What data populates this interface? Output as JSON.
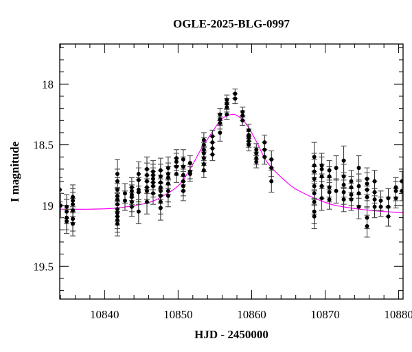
{
  "chart_data": {
    "type": "scatter",
    "title": "OGLE-2025-BLG-0997",
    "xlabel": "HJD - 2450000",
    "ylabel": "I magnitude",
    "xlim": [
      10833.9,
      10880.6
    ],
    "ylim": [
      19.77,
      17.67
    ],
    "y_inverted": true,
    "x_ticks": [
      10840,
      10850,
      10860,
      10870,
      10880
    ],
    "x_tick_labels": [
      "10840",
      "10850",
      "10860",
      "10870",
      "10880"
    ],
    "y_ticks": [
      18,
      18.5,
      19,
      19.5
    ],
    "y_tick_labels": [
      "18",
      "18.5",
      "19",
      "19.5"
    ],
    "grid": false,
    "colors": {
      "points": "#000000",
      "errorbars": "#555555",
      "model": "#ff00ff",
      "axes": "#000000"
    },
    "series": [
      {
        "kind": "data_with_errorbars",
        "points": [
          [
            10833.9,
            18.87,
            0.1
          ],
          [
            10834.0,
            19.0,
            0.1
          ],
          [
            10834.84,
            19.01,
            0.1
          ],
          [
            10834.84,
            19.05,
            0.1
          ],
          [
            10834.84,
            19.1,
            0.1
          ],
          [
            10834.84,
            19.13,
            0.1
          ],
          [
            10835.68,
            18.93,
            0.1
          ],
          [
            10835.68,
            18.96,
            0.1
          ],
          [
            10835.68,
            18.99,
            0.1
          ],
          [
            10835.68,
            19.04,
            0.1
          ],
          [
            10835.68,
            19.11,
            0.1
          ],
          [
            10835.68,
            19.15,
            0.1
          ],
          [
            10841.74,
            18.74,
            0.12
          ],
          [
            10841.74,
            18.8,
            0.1
          ],
          [
            10841.74,
            18.87,
            0.1
          ],
          [
            10841.74,
            18.92,
            0.1
          ],
          [
            10841.74,
            18.95,
            0.1
          ],
          [
            10841.74,
            18.99,
            0.1
          ],
          [
            10841.74,
            19.03,
            0.1
          ],
          [
            10841.74,
            19.06,
            0.1
          ],
          [
            10841.74,
            19.09,
            0.1
          ],
          [
            10841.74,
            19.12,
            0.1
          ],
          [
            10841.74,
            19.15,
            0.1
          ],
          [
            10842.77,
            18.9,
            0.08
          ],
          [
            10842.77,
            18.96,
            0.08
          ],
          [
            10843.7,
            18.85,
            0.08
          ],
          [
            10843.7,
            18.88,
            0.08
          ],
          [
            10843.7,
            18.91,
            0.08
          ],
          [
            10843.7,
            18.93,
            0.08
          ],
          [
            10843.7,
            18.97,
            0.08
          ],
          [
            10843.7,
            19.01,
            0.08
          ],
          [
            10844.63,
            18.74,
            0.1
          ],
          [
            10844.63,
            18.79,
            0.1
          ],
          [
            10844.63,
            18.87,
            0.1
          ],
          [
            10844.63,
            18.89,
            0.1
          ],
          [
            10844.63,
            19.05,
            0.1
          ],
          [
            10845.76,
            18.7,
            0.1
          ],
          [
            10845.76,
            18.75,
            0.1
          ],
          [
            10845.76,
            18.8,
            0.1
          ],
          [
            10845.76,
            18.85,
            0.1
          ],
          [
            10845.76,
            18.88,
            0.1
          ],
          [
            10845.76,
            18.97,
            0.1
          ],
          [
            10846.6,
            18.72,
            0.09
          ],
          [
            10846.6,
            18.75,
            0.09
          ],
          [
            10846.6,
            18.78,
            0.09
          ],
          [
            10846.6,
            18.81,
            0.09
          ],
          [
            10846.6,
            18.84,
            0.09
          ],
          [
            10846.6,
            18.9,
            0.09
          ],
          [
            10847.62,
            18.71,
            0.1
          ],
          [
            10847.62,
            18.76,
            0.1
          ],
          [
            10847.62,
            18.81,
            0.1
          ],
          [
            10847.62,
            18.85,
            0.1
          ],
          [
            10847.62,
            18.88,
            0.1
          ],
          [
            10847.62,
            18.92,
            0.1
          ],
          [
            10847.62,
            18.97,
            0.1
          ],
          [
            10847.62,
            19.02,
            0.1
          ],
          [
            10848.65,
            18.69,
            0.09
          ],
          [
            10848.65,
            18.74,
            0.09
          ],
          [
            10848.65,
            18.77,
            0.09
          ],
          [
            10848.65,
            18.82,
            0.09
          ],
          [
            10848.65,
            18.88,
            0.09
          ],
          [
            10848.65,
            18.92,
            0.09
          ],
          [
            10849.77,
            18.61,
            0.07
          ],
          [
            10849.77,
            18.64,
            0.07
          ],
          [
            10849.77,
            18.68,
            0.07
          ],
          [
            10849.77,
            18.74,
            0.07
          ],
          [
            10850.7,
            18.62,
            0.08
          ],
          [
            10850.7,
            18.68,
            0.08
          ],
          [
            10850.7,
            18.75,
            0.08
          ],
          [
            10850.7,
            18.8,
            0.08
          ],
          [
            10850.7,
            18.84,
            0.08
          ],
          [
            10850.7,
            18.88,
            0.08
          ],
          [
            10851.63,
            18.65,
            0.06
          ],
          [
            10851.63,
            18.72,
            0.06
          ],
          [
            10851.63,
            18.74,
            0.06
          ],
          [
            10853.5,
            18.46,
            0.06
          ],
          [
            10853.5,
            18.5,
            0.06
          ],
          [
            10853.5,
            18.54,
            0.06
          ],
          [
            10853.5,
            18.57,
            0.06
          ],
          [
            10853.5,
            18.61,
            0.06
          ],
          [
            10853.5,
            18.66,
            0.06
          ],
          [
            10853.5,
            18.71,
            0.06
          ],
          [
            10854.67,
            18.43,
            0.05
          ],
          [
            10854.67,
            18.48,
            0.05
          ],
          [
            10854.67,
            18.53,
            0.05
          ],
          [
            10854.67,
            18.58,
            0.05
          ],
          [
            10855.7,
            18.25,
            0.05
          ],
          [
            10855.7,
            18.29,
            0.05
          ],
          [
            10855.7,
            18.32,
            0.05
          ],
          [
            10855.7,
            18.4,
            0.07
          ],
          [
            10856.63,
            18.13,
            0.04
          ],
          [
            10856.63,
            18.16,
            0.04
          ],
          [
            10856.63,
            18.19,
            0.04
          ],
          [
            10856.63,
            18.25,
            0.04
          ],
          [
            10857.75,
            18.08,
            0.04
          ],
          [
            10857.75,
            18.12,
            0.04
          ],
          [
            10858.77,
            18.23,
            0.04
          ],
          [
            10858.77,
            18.26,
            0.04
          ],
          [
            10858.77,
            18.3,
            0.04
          ],
          [
            10859.61,
            18.38,
            0.05
          ],
          [
            10859.61,
            18.42,
            0.05
          ],
          [
            10859.61,
            18.44,
            0.05
          ],
          [
            10859.61,
            18.47,
            0.05
          ],
          [
            10859.61,
            18.5,
            0.05
          ],
          [
            10860.64,
            18.54,
            0.05
          ],
          [
            10860.64,
            18.57,
            0.05
          ],
          [
            10860.64,
            18.61,
            0.05
          ],
          [
            10860.64,
            18.64,
            0.05
          ],
          [
            10861.76,
            18.48,
            0.06
          ],
          [
            10861.76,
            18.54,
            0.06
          ],
          [
            10861.76,
            18.6,
            0.06
          ],
          [
            10862.69,
            18.62,
            0.07
          ],
          [
            10862.69,
            18.69,
            0.07
          ],
          [
            10862.69,
            18.8,
            0.09
          ],
          [
            10868.52,
            18.6,
            0.12
          ],
          [
            10868.52,
            18.67,
            0.1
          ],
          [
            10868.52,
            18.72,
            0.1
          ],
          [
            10868.52,
            18.78,
            0.1
          ],
          [
            10868.52,
            18.84,
            0.1
          ],
          [
            10868.52,
            18.9,
            0.1
          ],
          [
            10868.52,
            18.97,
            0.1
          ],
          [
            10868.52,
            19.05,
            0.1
          ],
          [
            10868.52,
            19.09,
            0.1
          ],
          [
            10869.54,
            18.67,
            0.1
          ],
          [
            10869.54,
            18.7,
            0.1
          ],
          [
            10869.54,
            18.76,
            0.1
          ],
          [
            10869.54,
            18.84,
            0.1
          ],
          [
            10869.54,
            18.94,
            0.1
          ],
          [
            10870.57,
            18.71,
            0.08
          ],
          [
            10870.57,
            18.76,
            0.08
          ],
          [
            10870.57,
            18.85,
            0.08
          ],
          [
            10870.57,
            18.89,
            0.08
          ],
          [
            10870.57,
            18.95,
            0.08
          ],
          [
            10871.5,
            18.69,
            0.1
          ],
          [
            10871.5,
            18.88,
            0.1
          ],
          [
            10872.53,
            18.63,
            0.12
          ],
          [
            10872.53,
            18.76,
            0.1
          ],
          [
            10872.53,
            18.83,
            0.1
          ],
          [
            10872.53,
            18.89,
            0.1
          ],
          [
            10872.53,
            18.95,
            0.1
          ],
          [
            10873.55,
            18.8,
            0.09
          ],
          [
            10873.55,
            18.85,
            0.09
          ],
          [
            10873.55,
            18.91,
            0.09
          ],
          [
            10873.55,
            18.95,
            0.09
          ],
          [
            10874.58,
            18.69,
            0.1
          ],
          [
            10874.58,
            18.84,
            0.1
          ],
          [
            10874.58,
            18.9,
            0.1
          ],
          [
            10874.58,
            19.01,
            0.1
          ],
          [
            10875.7,
            18.78,
            0.09
          ],
          [
            10875.7,
            18.82,
            0.09
          ],
          [
            10875.7,
            18.87,
            0.09
          ],
          [
            10875.7,
            18.93,
            0.09
          ],
          [
            10875.7,
            19.1,
            0.09
          ],
          [
            10875.7,
            19.17,
            0.09
          ],
          [
            10876.73,
            18.8,
            0.09
          ],
          [
            10876.73,
            18.89,
            0.09
          ],
          [
            10876.73,
            18.95,
            0.09
          ],
          [
            10876.73,
            19.01,
            0.09
          ],
          [
            10877.57,
            18.96,
            0.08
          ],
          [
            10877.57,
            19.01,
            0.08
          ],
          [
            10878.59,
            18.94,
            0.08
          ],
          [
            10878.59,
            19.01,
            0.08
          ],
          [
            10878.59,
            19.09,
            0.08
          ],
          [
            10879.62,
            18.85,
            0.08
          ],
          [
            10879.62,
            18.88,
            0.08
          ],
          [
            10879.62,
            18.94,
            0.08
          ],
          [
            10880.46,
            18.8,
            0.08
          ],
          [
            10880.46,
            18.88,
            0.08
          ]
        ]
      },
      {
        "kind": "model_curve",
        "points": [
          [
            10833.9,
            19.03
          ],
          [
            10838,
            19.03
          ],
          [
            10841.7,
            19.02
          ],
          [
            10845.7,
            18.98
          ],
          [
            10848,
            18.92
          ],
          [
            10850.3,
            18.82
          ],
          [
            10852.0,
            18.66
          ],
          [
            10852.8,
            18.57
          ],
          [
            10853.5,
            18.5
          ],
          [
            10854.7,
            18.39
          ],
          [
            10855.9,
            18.29
          ],
          [
            10857.3,
            18.25
          ],
          [
            10858.3,
            18.27
          ],
          [
            10859.4,
            18.34
          ],
          [
            10860.8,
            18.49
          ],
          [
            10862.2,
            18.65
          ],
          [
            10865.0,
            18.82
          ],
          [
            10866.8,
            18.89
          ],
          [
            10869,
            18.95
          ],
          [
            10871.5,
            19.0
          ],
          [
            10876.2,
            19.04
          ],
          [
            10880.6,
            19.06
          ]
        ]
      }
    ]
  }
}
